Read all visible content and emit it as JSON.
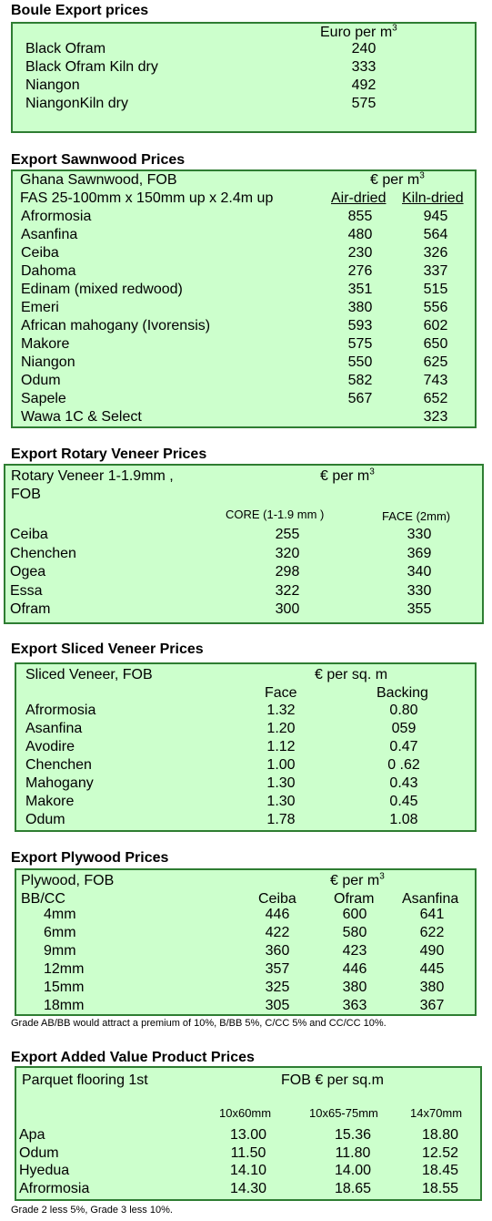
{
  "boule": {
    "title": "Boule Export prices",
    "unit_label": "Euro per m",
    "unit_sup": "3",
    "rows": [
      {
        "name": "Black Ofram",
        "value": "240"
      },
      {
        "name": "Black Ofram  Kiln dry",
        "value": "333"
      },
      {
        "name": "Niangon",
        "value": "492"
      },
      {
        "name": "NiangonKiln dry",
        "value": "575"
      }
    ]
  },
  "sawnwood": {
    "title": "Export Sawnwood Prices",
    "header1": "Ghana Sawnwood, FOB",
    "unit_label": "€ per m",
    "unit_sup": "3",
    "header2": "FAS 25-100mm x 150mm up x 2.4m up",
    "col1": "Air-dried",
    "col2": "Kiln-dried",
    "rows": [
      {
        "name": "Afrormosia",
        "air": "855",
        "kiln": "945"
      },
      {
        "name": "Asanfina",
        "air": "480",
        "kiln": "564"
      },
      {
        "name": "Ceiba",
        "air": "230",
        "kiln": "326"
      },
      {
        "name": "Dahoma",
        "air": "276",
        "kiln": "337"
      },
      {
        "name": "Edinam (mixed redwood)",
        "air": "351",
        "kiln": "515"
      },
      {
        "name": "Emeri",
        "air": "380",
        "kiln": "556"
      },
      {
        "name": "African mahogany (Ivorensis)",
        "air": "593",
        "kiln": "602"
      },
      {
        "name": "Makore",
        "air": "575",
        "kiln": "650"
      },
      {
        "name": "Niangon",
        "air": "550",
        "kiln": "625"
      },
      {
        "name": "Odum",
        "air": "582",
        "kiln": "743"
      },
      {
        "name": "Sapele",
        "air": "567",
        "kiln": "652"
      },
      {
        "name": "Wawa 1C & Select",
        "air": "",
        "kiln": "323"
      }
    ]
  },
  "rotary": {
    "title": "Export Rotary Veneer Prices",
    "header1": "Rotary Veneer 1-1.9mm ,",
    "header1b": "FOB",
    "unit_label": "€  per m",
    "unit_sup": "3",
    "col1": "CORE (1-1.9 mm )",
    "col2": "FACE (2mm)",
    "rows": [
      {
        "name": "Ceiba",
        "core": "255",
        "face": "330"
      },
      {
        "name": "Chenchen",
        "core": "320",
        "face": "369"
      },
      {
        "name": "Ogea",
        "core": "298",
        "face": "340"
      },
      {
        "name": "Essa",
        "core": "322",
        "face": "330"
      },
      {
        "name": "Ofram",
        "core": "300",
        "face": "355"
      }
    ]
  },
  "sliced": {
    "title": "Export Sliced Veneer Prices",
    "header1": "Sliced Veneer, FOB",
    "unit_label": "€ per sq. m",
    "col1": "Face",
    "col2": "Backing",
    "rows": [
      {
        "name": "Afrormosia",
        "face": "1.32",
        "backing": "0.80"
      },
      {
        "name": "Asanfina",
        "face": "1.20",
        "backing": "059"
      },
      {
        "name": "Avodire",
        "face": "1.12",
        "backing": "0.47"
      },
      {
        "name": "Chenchen",
        "face": "1.00",
        "backing": "0 .62"
      },
      {
        "name": "Mahogany",
        "face": "1.30",
        "backing": "0.43"
      },
      {
        "name": "Makore",
        "face": "1.30",
        "backing": "0.45"
      },
      {
        "name": "Odum",
        "face": "1.78",
        "backing": "1.08"
      }
    ]
  },
  "plywood": {
    "title": "Export Plywood Prices",
    "header1": "Plywood, FOB",
    "unit_label": "€ per m",
    "unit_sup": "3",
    "header2": "BB/CC",
    "col1": "Ceiba",
    "col2": "Ofram",
    "col3": "Asanfina",
    "rows": [
      {
        "name": "4mm",
        "ceiba": "446",
        "ofram": "600",
        "asanfina": "641"
      },
      {
        "name": "6mm",
        "ceiba": "422",
        "ofram": "580",
        "asanfina": "622"
      },
      {
        "name": "9mm",
        "ceiba": "360",
        "ofram": "423",
        "asanfina": "490"
      },
      {
        "name": "12mm",
        "ceiba": "357",
        "ofram": "446",
        "asanfina": "445"
      },
      {
        "name": "15mm",
        "ceiba": "325",
        "ofram": "380",
        "asanfina": "380"
      },
      {
        "name": "18mm",
        "ceiba": "305",
        "ofram": "363",
        "asanfina": "367"
      }
    ],
    "note": "Grade AB/BB would attract a premium of 10%, B/BB 5%, C/CC 5% and CC/CC 10%."
  },
  "added": {
    "title": "Export Added Value Product Prices",
    "header1": "Parquet flooring 1st",
    "unit_label": "FOB € per sq.m",
    "col1": "10x60mm",
    "col2": "10x65-75mm",
    "col3": "14x70mm",
    "rows": [
      {
        "name": "Apa",
        "a": "13.00",
        "b": "15.36",
        "c": "18.80"
      },
      {
        "name": "Odum",
        "a": "11.50",
        "b": "11.80",
        "c": "12.52"
      },
      {
        "name": "Hyedua",
        "a": "14.10",
        "b": "14.00",
        "c": "18.45"
      },
      {
        "name": "Afrormosia",
        "a": "14.30",
        "b": "18.65",
        "c": "18.55"
      }
    ],
    "note": "Grade 2 less 5%, Grade 3 less 10%."
  }
}
